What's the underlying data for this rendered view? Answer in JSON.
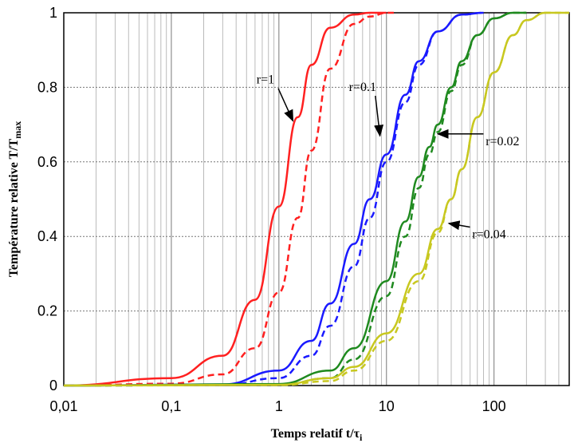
{
  "chart_data": {
    "type": "line",
    "title": "",
    "xlabel": "Temps relatif t/τ",
    "xlabel_sub": "i",
    "ylabel": "Température relative T/T",
    "ylabel_sub": "max",
    "xscale": "log",
    "xlim": [
      0.01,
      500
    ],
    "ylim": [
      0,
      1
    ],
    "grid": true,
    "x_ticks": [
      {
        "value": 0.01,
        "label": "0,01"
      },
      {
        "value": 0.1,
        "label": "0,1"
      },
      {
        "value": 1,
        "label": "1"
      },
      {
        "value": 10,
        "label": "10"
      },
      {
        "value": 100,
        "label": "100"
      }
    ],
    "y_ticks": [
      {
        "value": 0,
        "label": "0"
      },
      {
        "value": 0.2,
        "label": "0.2"
      },
      {
        "value": 0.4,
        "label": "0.4"
      },
      {
        "value": 0.6,
        "label": "0.6"
      },
      {
        "value": 0.8,
        "label": "0.8"
      },
      {
        "value": 1,
        "label": "1"
      }
    ],
    "series": [
      {
        "color": "#ff2020",
        "style": "solid",
        "x": [
          0.01,
          0.1,
          0.3,
          0.6,
          1,
          1.5,
          2,
          3,
          5,
          7,
          10
        ],
        "y": [
          0.0,
          0.02,
          0.08,
          0.23,
          0.48,
          0.72,
          0.86,
          0.96,
          0.995,
          1.0,
          1.0
        ]
      },
      {
        "color": "#ff2020",
        "style": "dashed",
        "x": [
          0.01,
          0.1,
          0.3,
          0.6,
          1,
          1.5,
          2,
          3,
          5,
          7,
          10,
          12
        ],
        "y": [
          0.0,
          0.005,
          0.03,
          0.1,
          0.25,
          0.45,
          0.63,
          0.85,
          0.97,
          0.99,
          1.0,
          1.0
        ]
      },
      {
        "color": "#1a1aff",
        "style": "solid",
        "x": [
          0.01,
          0.3,
          1,
          2,
          3,
          5,
          7,
          10,
          15,
          20,
          30,
          50,
          80
        ],
        "y": [
          0.0,
          0.003,
          0.04,
          0.12,
          0.22,
          0.38,
          0.5,
          0.62,
          0.78,
          0.87,
          0.95,
          0.995,
          1.0
        ]
      },
      {
        "color": "#1a1aff",
        "style": "dashed",
        "x": [
          0.01,
          0.3,
          1,
          2,
          3,
          5,
          7,
          10,
          15,
          20,
          30,
          50,
          80
        ],
        "y": [
          0.0,
          0.001,
          0.02,
          0.08,
          0.16,
          0.32,
          0.45,
          0.6,
          0.76,
          0.86,
          0.95,
          0.995,
          1.0
        ]
      },
      {
        "color": "#1f8a1f",
        "style": "solid",
        "x": [
          0.01,
          1,
          3,
          5,
          10,
          15,
          20,
          25,
          30,
          40,
          50,
          70,
          100,
          150,
          200
        ],
        "y": [
          0.0,
          0.004,
          0.04,
          0.1,
          0.28,
          0.44,
          0.56,
          0.64,
          0.7,
          0.8,
          0.87,
          0.94,
          0.985,
          1.0,
          1.0
        ]
      },
      {
        "color": "#1f8a1f",
        "style": "dashed",
        "x": [
          0.01,
          1,
          3,
          5,
          10,
          15,
          20,
          25,
          30,
          40,
          50,
          70,
          100,
          150,
          200
        ],
        "y": [
          0.0,
          0.002,
          0.02,
          0.07,
          0.24,
          0.4,
          0.53,
          0.62,
          0.68,
          0.79,
          0.86,
          0.94,
          0.985,
          1.0,
          1.0
        ]
      },
      {
        "color": "#c8c820",
        "style": "solid",
        "x": [
          0.01,
          1,
          3,
          5,
          10,
          20,
          30,
          40,
          50,
          70,
          100,
          150,
          200,
          300,
          500
        ],
        "y": [
          0.0,
          0.002,
          0.02,
          0.05,
          0.14,
          0.3,
          0.42,
          0.5,
          0.58,
          0.72,
          0.84,
          0.94,
          0.98,
          1.0,
          1.0
        ]
      },
      {
        "color": "#c8c820",
        "style": "dashed",
        "x": [
          0.01,
          1,
          3,
          5,
          10,
          20,
          30,
          40,
          50,
          70,
          100,
          150,
          200,
          300,
          500
        ],
        "y": [
          0.0,
          0.001,
          0.012,
          0.04,
          0.12,
          0.28,
          0.41,
          0.5,
          0.58,
          0.72,
          0.84,
          0.94,
          0.98,
          1.0,
          1.0
        ]
      }
    ],
    "annotations": [
      {
        "text": "r=1",
        "x": 0.75,
        "y": 0.81,
        "arrow_x": 1.35,
        "arrow_y": 0.71
      },
      {
        "text": "r=0.1",
        "x": 6.0,
        "y": 0.79,
        "arrow_x": 8.7,
        "arrow_y": 0.67
      },
      {
        "text": "r=0.02",
        "x": 120,
        "y": 0.645,
        "arrow_x": 30,
        "arrow_y": 0.675
      },
      {
        "text": "r=0.04",
        "x": 90,
        "y": 0.395,
        "arrow_x": 38,
        "arrow_y": 0.435
      }
    ]
  }
}
